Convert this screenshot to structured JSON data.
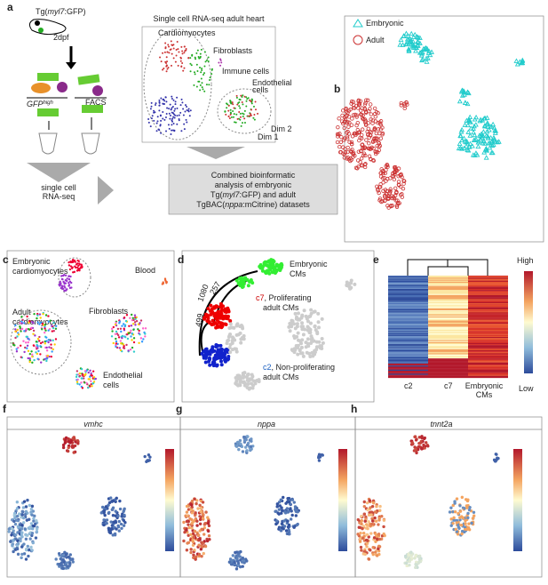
{
  "a": {
    "label": "a",
    "transgenic": {
      "pre": "Tg(",
      "ital": "myl7",
      "post": ":GFP)"
    },
    "stage": "2dpf",
    "gfp": {
      "ital": "GFP",
      "sup": "high"
    },
    "facs": "FACS",
    "seq": [
      "single cell",
      "RNA-seq"
    ],
    "heart_title": "Single cell RNA-seq adult heart",
    "cardiomyocytes": "Cardiomyocytes",
    "fibroblasts": "Fibroblasts",
    "immune": "Immune cells",
    "endothelial": [
      "Endothelial",
      "cells"
    ],
    "dim1": "Dim 1",
    "dim2": "Dim 2",
    "combined": [
      "Combined bioinformatic",
      "analysis of embryonic",
      {
        "pre": "Tg(",
        "ital": "myl7",
        "post": ":GFP) and adult"
      },
      {
        "pre": "TgBAC(",
        "ital": "nppa",
        "post": ":mCitrine) datasets"
      }
    ]
  },
  "b": {
    "label": "b",
    "legend": [
      "Embryonic",
      "Adult"
    ]
  },
  "c": {
    "label": "c",
    "embryonic": [
      "Embryonic",
      "cardiomyocytes"
    ],
    "blood": "Blood",
    "adult": [
      "Adult",
      "cardiomyocytes"
    ],
    "fibroblasts": "Fibroblasts",
    "endothelial": [
      "Endothelial",
      "cells"
    ]
  },
  "d": {
    "label": "d",
    "embryonic": [
      "Embryonic",
      "CMs"
    ],
    "c7": {
      "pre": "c7",
      "post": ", Proliferating"
    },
    "c7b": "adult CMs",
    "c2": {
      "pre": "c2",
      "post": ", Non-proliferating"
    },
    "c2b": "adult CMs",
    "n1080": "1080",
    "n257": "257",
    "n499": "499"
  },
  "e": {
    "label": "e",
    "high": "High",
    "low": "Low",
    "cols": [
      "c2",
      "c7"
    ],
    "emb": [
      "Embryonic",
      "CMs"
    ]
  },
  "f": {
    "label": "f",
    "gene": "vmhc"
  },
  "g": {
    "label": "g",
    "gene": "nppa"
  },
  "h": {
    "label": "h",
    "gene": "tnnt2a"
  }
}
